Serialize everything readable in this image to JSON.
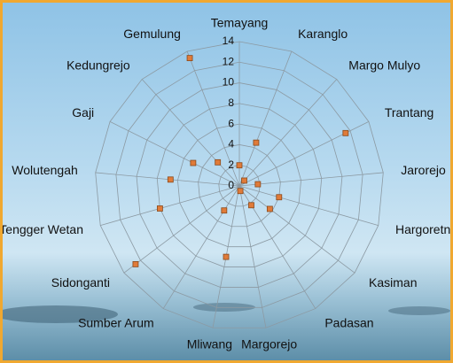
{
  "chart_data": {
    "type": "radar",
    "categories": [
      "Temayang",
      "Karanglo",
      "Margo Mulyo",
      "Trantang",
      "Jarorejo",
      "Hargoretno",
      "Kasiman",
      "Padasan",
      "Margorejo",
      "Mliwang",
      "Sumber Arum",
      "Sidonganti",
      "Tengger Wetan",
      "Wolutengah",
      "Gaji",
      "Kedungrejo",
      "Gemulung"
    ],
    "values": [
      2,
      4.5,
      0.7,
      11.5,
      1.8,
      4,
      3.7,
      2.2,
      0.5,
      7,
      2.8,
      12.6,
      8,
      6.7,
      5,
      3.1,
      13.3
    ],
    "color": "#e07b39",
    "ylim": [
      0,
      14
    ],
    "yticks": [
      0,
      2,
      4,
      6,
      8,
      10,
      12,
      14
    ],
    "grid": true
  }
}
